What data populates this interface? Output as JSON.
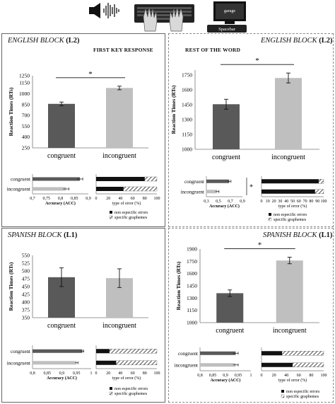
{
  "header": {
    "screen_word": "garage",
    "spacebar_label": "Spacebar",
    "first_key_label": "FIRST KEY RESPONSE",
    "rest_label": "REST OF THE WORD"
  },
  "panels": {
    "tl": {
      "title_main": "ENGLISH BLOCK",
      "title_tag": "(L2)"
    },
    "tr": {
      "title_main": "ENGLISH BLOCK",
      "title_tag": "(L2)"
    },
    "bl": {
      "title_main": "SPANISH BLOCK",
      "title_tag": "(L1)"
    },
    "br": {
      "title_main": "SPANISH BLOCK",
      "title_tag": "(L1)"
    }
  },
  "chart_data": [
    {
      "id": "tl_rt",
      "type": "bar",
      "ylabel": "Reaction Times (RTs)",
      "categories": [
        "congruent",
        "incongruent"
      ],
      "values": [
        860,
        1080
      ],
      "errors": [
        25,
        25
      ],
      "ylim": [
        250,
        1250
      ],
      "yticks": [
        "250",
        "400",
        "550",
        "700",
        "850",
        "1000",
        "1150",
        "1250"
      ],
      "colors": [
        "#595959",
        "#bfbfbf"
      ],
      "significance": "*"
    },
    {
      "id": "tl_acc",
      "type": "bar",
      "orientation": "horizontal",
      "categories": [
        "congruent",
        "incongruent"
      ],
      "values": [
        0.87,
        0.82
      ],
      "errors": [
        0.01,
        0.01
      ],
      "xlim": [
        0.7,
        0.9
      ],
      "xticks": [
        "0,7",
        "0,75",
        "0,8",
        "0,85",
        "0,9"
      ],
      "xlabel": "Accuracy (ACC)"
    },
    {
      "id": "tl_err",
      "type": "bar",
      "stacked": true,
      "orientation": "horizontal",
      "categories": [
        "congruent",
        "incongruent"
      ],
      "series": [
        {
          "name": "non especific errors",
          "values": [
            80,
            45
          ]
        },
        {
          "name": "specific graphemes",
          "values": [
            20,
            55
          ]
        }
      ],
      "xlim": [
        0,
        100
      ],
      "xticks": [
        "0",
        "20",
        "40",
        "60",
        "80",
        "100"
      ],
      "xlabel": "type of error (%)"
    },
    {
      "id": "tr_rt",
      "type": "bar",
      "ylabel": "Reaction Times (RTs)",
      "categories": [
        "congruent",
        "incongruent"
      ],
      "values": [
        1455,
        1720
      ],
      "errors": [
        50,
        50
      ],
      "ylim": [
        1000,
        1800
      ],
      "yticks": [
        "1000",
        "1150",
        "1300",
        "1450",
        "1600",
        "1750"
      ],
      "colors": [
        "#595959",
        "#bfbfbf"
      ],
      "significance": "*"
    },
    {
      "id": "tr_acc",
      "type": "bar",
      "orientation": "horizontal",
      "categories": [
        "congruent",
        "incongruent"
      ],
      "values": [
        0.68,
        0.48
      ],
      "errors": [
        0.03,
        0.03
      ],
      "xlim": [
        0.3,
        0.9
      ],
      "xticks": [
        "0,3",
        "0,5",
        "0,7",
        "0,9"
      ],
      "xlabel": "Accuracy (ACC)",
      "significance": "*"
    },
    {
      "id": "tr_err",
      "type": "bar",
      "stacked": true,
      "orientation": "horizontal",
      "categories": [
        "congruent",
        "incongruent"
      ],
      "series": [
        {
          "name": "non especific errors",
          "values": [
            92,
            86
          ]
        },
        {
          "name": "specific graphemes",
          "values": [
            8,
            14
          ]
        }
      ],
      "xlim": [
        0,
        100
      ],
      "xticks": [
        "0",
        "10",
        "20",
        "30",
        "40",
        "50",
        "60",
        "70",
        "80",
        "90",
        "100"
      ],
      "xlabel": "type of error (%)"
    },
    {
      "id": "bl_rt",
      "type": "bar",
      "ylabel": "Reaction Times (RTs)",
      "categories": [
        "congruent",
        "incongruent"
      ],
      "values": [
        480,
        477
      ],
      "errors": [
        30,
        30
      ],
      "ylim": [
        350,
        550
      ],
      "yticks": [
        "350",
        "375",
        "400",
        "425",
        "450",
        "475",
        "500",
        "525",
        "550"
      ],
      "colors": [
        "#595959",
        "#bfbfbf"
      ]
    },
    {
      "id": "bl_acc",
      "type": "bar",
      "orientation": "horizontal",
      "categories": [
        "congruent",
        "incongruent"
      ],
      "values": [
        0.97,
        0.95
      ],
      "errors": [
        0.005,
        0.005
      ],
      "xlim": [
        0.8,
        1
      ],
      "xticks": [
        "0,8",
        "0,85",
        "0,9",
        "0,95",
        "1"
      ],
      "xlabel": "Accuracy (ACC)"
    },
    {
      "id": "bl_err",
      "type": "bar",
      "stacked": true,
      "orientation": "horizontal",
      "categories": [
        "congruent",
        "incongruent"
      ],
      "series": [
        {
          "name": "non especific errors",
          "values": [
            22,
            33
          ]
        },
        {
          "name": "specific graphemes",
          "values": [
            78,
            67
          ]
        }
      ],
      "xlim": [
        0,
        100
      ],
      "xticks": [
        "0",
        "20",
        "40",
        "60",
        "80",
        "100"
      ],
      "xlabel": "type of error (%)"
    },
    {
      "id": "br_rt",
      "type": "bar",
      "ylabel": "Reaction Times (RTs)",
      "categories": [
        "congruent",
        "incongruent"
      ],
      "values": [
        1360,
        1760
      ],
      "errors": [
        40,
        40
      ],
      "ylim": [
        1000,
        1900
      ],
      "yticks": [
        "1000",
        "1150",
        "1300",
        "1450",
        "1600",
        "1750",
        "1900"
      ],
      "colors": [
        "#595959",
        "#bfbfbf"
      ],
      "significance": "*"
    },
    {
      "id": "br_acc",
      "type": "bar",
      "orientation": "horizontal",
      "categories": [
        "congruent",
        "incongruent"
      ],
      "values": [
        0.94,
        0.94
      ],
      "errors": [
        0.01,
        0.01
      ],
      "xlim": [
        0.8,
        1
      ],
      "xticks": [
        "0,8",
        "0,85",
        "0,9",
        "0,95",
        "1"
      ],
      "xlabel": "Accuracy (ACC)"
    },
    {
      "id": "br_err",
      "type": "bar",
      "stacked": true,
      "orientation": "horizontal",
      "categories": [
        "congruent",
        "incongruent"
      ],
      "series": [
        {
          "name": "non especific errors",
          "values": [
            33,
            50
          ]
        },
        {
          "name": "specific graphemes",
          "values": [
            67,
            50
          ]
        }
      ],
      "xlim": [
        0,
        100
      ],
      "xticks": [
        "0",
        "20",
        "40",
        "60",
        "80",
        "100"
      ],
      "xlabel": "type of error (%)"
    }
  ]
}
